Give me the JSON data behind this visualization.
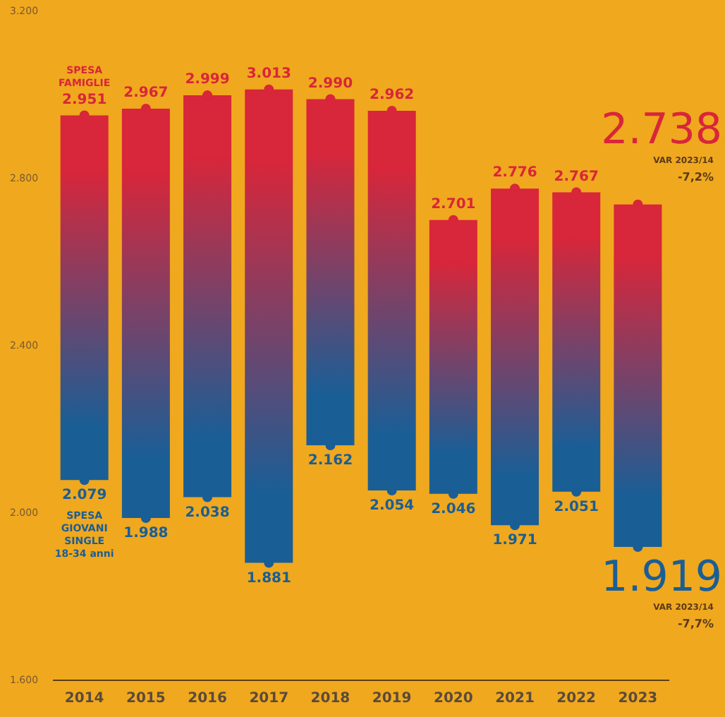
{
  "chart_data": {
    "type": "bar",
    "categories": [
      "2014",
      "2015",
      "2016",
      "2017",
      "2018",
      "2019",
      "2020",
      "2021",
      "2022",
      "2023"
    ],
    "series": [
      {
        "base": [
          2079,
          1988,
          2038,
          1881,
          2162,
          2054,
          2046,
          1971,
          2051,
          1919
        ],
        "values": [
          872,
          979,
          961,
          1132,
          828,
          908,
          655,
          805,
          716,
          819
        ]
      },
      {
        "type": "scatter",
        "name": "SPESA FAMIGLIE",
        "color": "#d8263a",
        "values": [
          2951,
          2967,
          2999,
          3013,
          2990,
          2962,
          2701,
          2776,
          2767,
          2738
        ],
        "value_labels": [
          "2.951",
          "2.967",
          "2.999",
          "3.013",
          "2.990",
          "2.962",
          "2.701",
          "2.776",
          "2.767",
          null
        ]
      },
      {
        "type": "scatter",
        "name": "SPESA GIOVANI SINGLE 18-34 anni",
        "color": "#1a5e96",
        "values": [
          2079,
          1988,
          2038,
          1881,
          2162,
          2054,
          2046,
          1971,
          2051,
          1919
        ],
        "value_labels": [
          "2.079",
          "1.988",
          "2.038",
          "1.881",
          "2.162",
          "2.054",
          "2.046",
          "1.971",
          "2.051",
          null
        ]
      }
    ],
    "ylim": [
      1600,
      3200
    ],
    "yticks": [
      {
        "value": 1600,
        "label": "1.600"
      },
      {
        "value": 2000,
        "label": "2.000"
      },
      {
        "value": 2400,
        "label": "2.400"
      },
      {
        "value": 2800,
        "label": "2.800"
      },
      {
        "value": 3200,
        "label": "3.200"
      }
    ],
    "annotations": [
      {
        "text": "2.738",
        "x": "2023",
        "y": 2738
      },
      "VAR 2023/14\n-7,2%",
      {
        "text": "1.919",
        "x": "2023",
        "y": 1919
      },
      "VAR 2023/14\n-7,7%"
    ],
    "marker": "circle",
    "grid": false,
    "legend": false
  }
}
